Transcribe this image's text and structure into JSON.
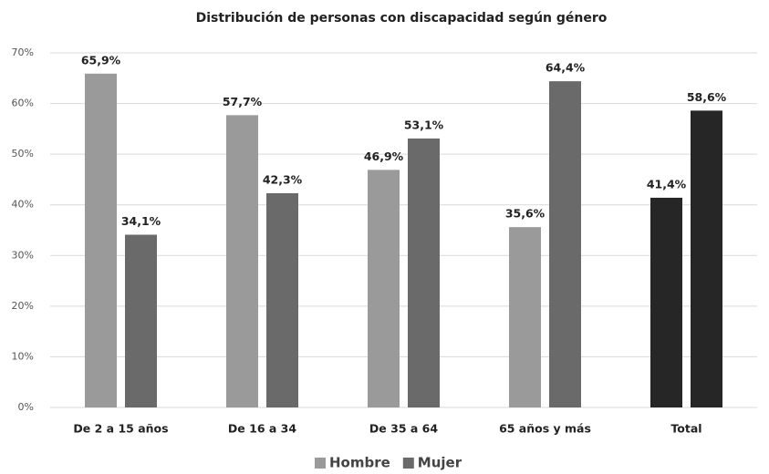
{
  "chart_data": {
    "type": "bar",
    "title": "Distribución de personas con discapacidad según género",
    "categories": [
      "De 2 a 15 años",
      "De 16 a 34",
      "De 35 a 64",
      "65 años y más",
      "Total"
    ],
    "series": [
      {
        "name": "Hombre",
        "color": "#9a9a9a",
        "colors": [
          "#9a9a9a",
          "#9a9a9a",
          "#9a9a9a",
          "#9a9a9a",
          "#262626"
        ],
        "values": [
          65.9,
          57.7,
          46.9,
          35.6,
          41.4
        ],
        "value_labels": [
          "65,9%",
          "57,7%",
          "46,9%",
          "35,6%",
          "41,4%"
        ]
      },
      {
        "name": "Mujer",
        "color": "#6a6a6a",
        "colors": [
          "#6a6a6a",
          "#6a6a6a",
          "#6a6a6a",
          "#6a6a6a",
          "#262626"
        ],
        "values": [
          34.1,
          42.3,
          53.1,
          64.4,
          58.6
        ],
        "value_labels": [
          "34,1%",
          "42,3%",
          "53,1%",
          "64,4%",
          "58,6%"
        ]
      }
    ],
    "ylim": [
      0,
      70
    ],
    "yticks": [
      {
        "value": 0,
        "label": "0%"
      },
      {
        "value": 10,
        "label": "10%"
      },
      {
        "value": 20,
        "label": "20%"
      },
      {
        "value": 30,
        "label": "30%"
      },
      {
        "value": 40,
        "label": "40%"
      },
      {
        "value": 50,
        "label": "50%"
      },
      {
        "value": 60,
        "label": "60%"
      },
      {
        "value": 70,
        "label": "70%"
      }
    ],
    "grid": true,
    "legend": "bottom"
  }
}
